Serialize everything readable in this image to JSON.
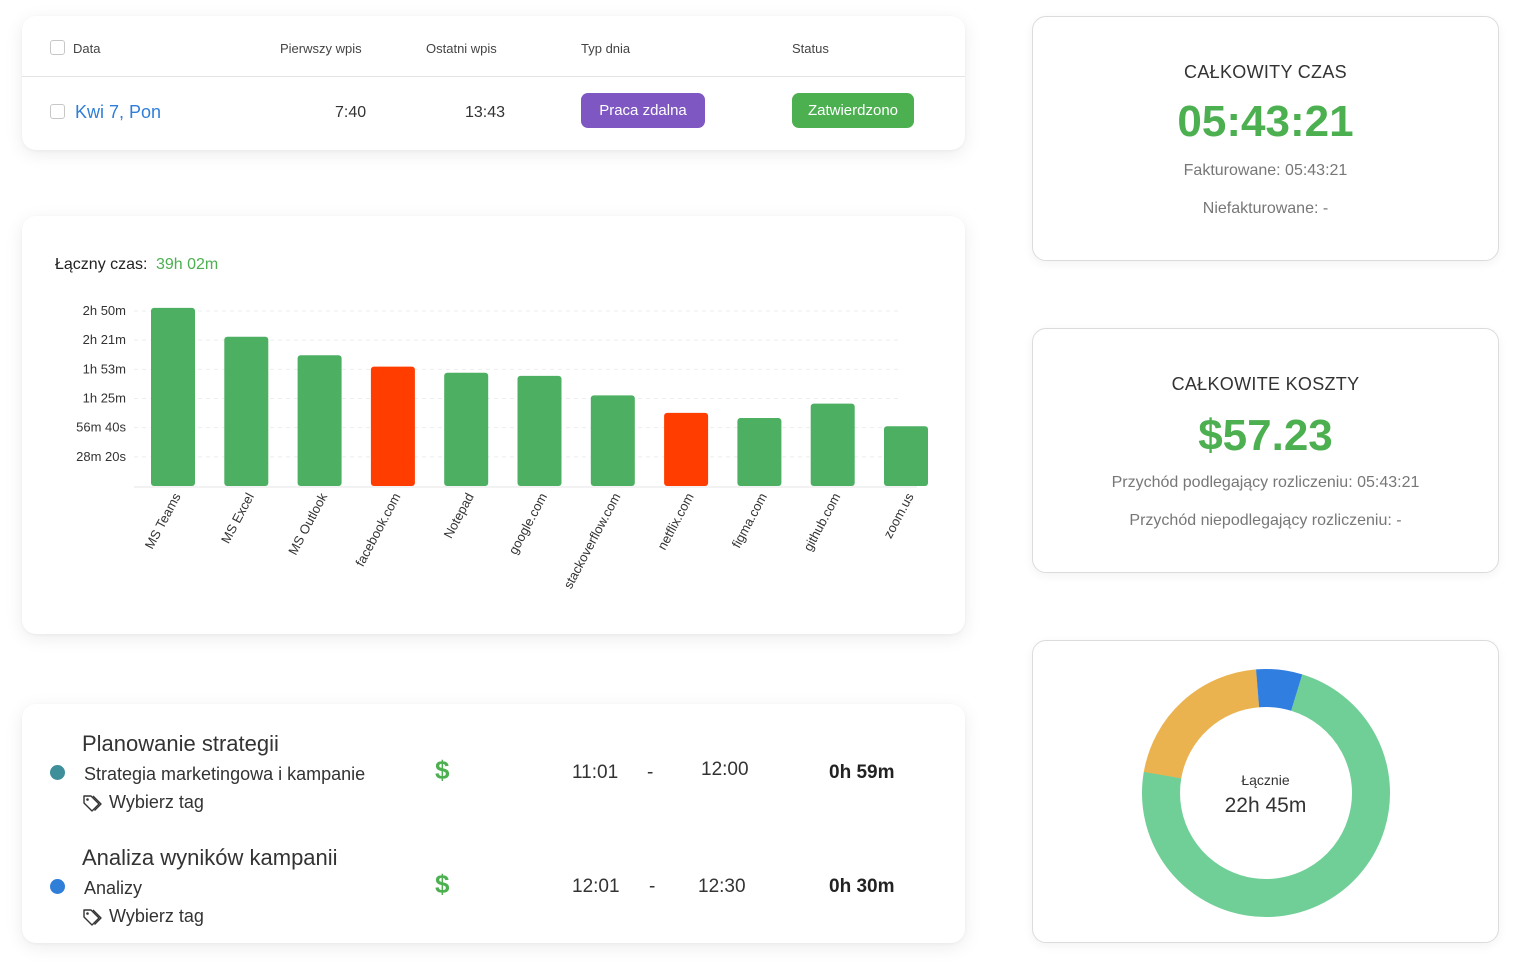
{
  "timesheet": {
    "headers": {
      "date": "Data",
      "first_entry": "Pierwszy wpis",
      "last_entry": "Ostatni wpis",
      "day_type": "Typ dnia",
      "status": "Status"
    },
    "row": {
      "date": "Kwi 7, Pon",
      "first_entry": "7:40",
      "last_entry": "13:43",
      "day_type": "Praca zdalna",
      "status": "Zatwierdzono"
    },
    "colors": {
      "day_type_pill": "#7e57c2",
      "status_pill": "#4caf50",
      "date_link": "#2f7ed8"
    }
  },
  "chart_panel": {
    "total_label": "Łączny czas:",
    "total_value": "39h 02m"
  },
  "chart_data": {
    "type": "bar",
    "categories": [
      "MS Teams",
      "MS Excel",
      "MS Outlook",
      "facebook.com",
      "Notepad",
      "google.com",
      "stackoverflow.com",
      "netflix.com",
      "figma.com",
      "github.com",
      "zoom.us"
    ],
    "values_minutes": [
      173,
      145,
      127,
      116,
      110,
      107,
      88,
      71,
      66,
      80,
      58
    ],
    "productive": [
      true,
      true,
      true,
      false,
      true,
      true,
      true,
      false,
      true,
      true,
      true
    ],
    "y_tick_labels": [
      "28m 20s",
      "56m 40s",
      "1h 25m",
      "1h 53m",
      "2h 21m",
      "2h 50m"
    ],
    "y_tick_minutes": [
      28.33,
      56.67,
      85,
      113.33,
      141.67,
      170
    ],
    "ylim_minutes": [
      0,
      180
    ],
    "colors": {
      "productive": "#4caf62",
      "unproductive": "#ff3d00"
    },
    "grid": true,
    "legend": "none"
  },
  "tasks": [
    {
      "title": "Planowanie strategii",
      "subtitle": "Strategia marketingowa i kampanie",
      "tag": "Wybierz tag",
      "billable_icon": "$",
      "start": "11:01",
      "sep": "-",
      "end": "12:00",
      "duration": "0h 59m",
      "dot_color": "#3f8f9a"
    },
    {
      "title": "Analiza wyników kampanii",
      "subtitle": "Analizy",
      "tag": "Wybierz tag",
      "billable_icon": "$",
      "start": "12:01",
      "sep": "-",
      "end": "12:30",
      "duration": "0h 30m",
      "dot_color": "#2f7ed8"
    }
  ],
  "total_time": {
    "title": "CAŁKOWITY CZAS",
    "value": "05:43:21",
    "billable": "Fakturowane: 05:43:21",
    "non_billable": "Niefakturowane: -"
  },
  "total_costs": {
    "title": "CAŁKOWITE KOSZTY",
    "value": "$57.23",
    "billable": "Przychód podlegający rozliczeniu: 05:43:21",
    "non_billable": "Przychód niepodlegający rozliczeniu: -"
  },
  "donut": {
    "center_label": "Łącznie",
    "center_value": "22h 45m",
    "slices": [
      {
        "value": 73,
        "color": "#6fcf97"
      },
      {
        "value": 21,
        "color": "#ebb350"
      },
      {
        "value": 6,
        "color": "#2f7ee0"
      }
    ]
  }
}
